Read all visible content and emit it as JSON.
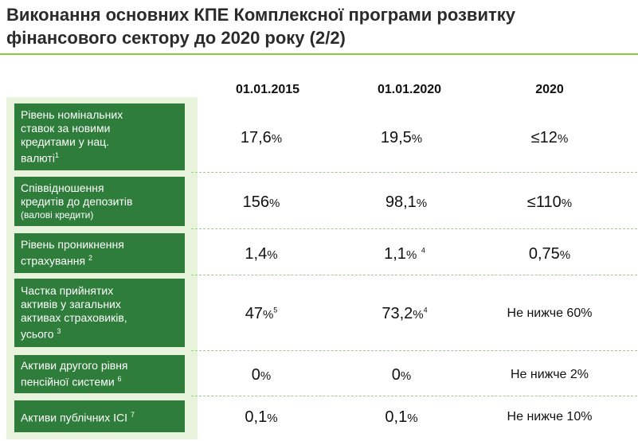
{
  "title_line1": "Виконання основних КПЕ Комплексної програми розвитку",
  "title_line2": "фінансового сектору до 2020 року (2/2)",
  "columns": [
    "01.01.2015",
    "01.01.2020",
    "2020"
  ],
  "rows": [
    {
      "label_lines": [
        "Рівень номінальних",
        "ставок за новими",
        "кредитами у нац.",
        "валюті"
      ],
      "label_sup": "1",
      "v2015": "17,6",
      "v2015_unit": "%",
      "v2020": "19,5",
      "v2020_unit": "%",
      "target": "≤12",
      "target_unit": "%"
    },
    {
      "label_lines": [
        "Співвідношення",
        "кредитів до депозитів"
      ],
      "label_small": "(валові кредити)",
      "v2015": "156",
      "v2015_unit": "%",
      "v2020": "98,1",
      "v2020_unit": "%",
      "target": "≤110",
      "target_unit": "%"
    },
    {
      "label_lines": [
        "Рівень проникнення",
        "страхування"
      ],
      "label_sup": "2",
      "v2015": "1,4",
      "v2015_unit": "%",
      "v2020": "1,1",
      "v2020_unit": "%",
      "v2020_sup": "4",
      "target": "0,75",
      "target_unit": "%"
    },
    {
      "label_lines": [
        "Частка прийнятих",
        "активів у загальних",
        "активах страховиків,",
        "усього"
      ],
      "label_sup": "3",
      "v2015": "47",
      "v2015_unit": "%",
      "v2015_sup": "5",
      "v2020": "73,2",
      "v2020_unit": "%",
      "v2020_sup": "4",
      "target": "Не нижче 60%"
    },
    {
      "label_lines": [
        "Активи другого рівня",
        "пенсійної системи"
      ],
      "label_sup": "6",
      "v2015": "0",
      "v2015_unit": "%",
      "v2020": "0",
      "v2020_unit": "%",
      "target": "Не нижче 2%"
    },
    {
      "label_lines": [
        "Активи публічних ІСІ"
      ],
      "label_sup": "7",
      "v2015": "0,1",
      "v2015_unit": "%",
      "v2020": "0,1",
      "v2020_unit": "%",
      "target": "Не нижче 10%"
    }
  ],
  "colors": {
    "label_bg": "#2e7d3a",
    "side_bg": "#e8f3dc",
    "accent": "#8dc63f"
  }
}
